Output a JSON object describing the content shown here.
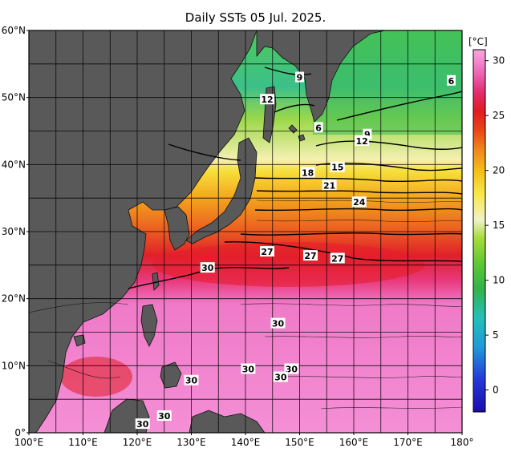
{
  "title": "Daily SSTs 05 Jul. 2025.",
  "map": {
    "lon_range": [
      100,
      180
    ],
    "lat_range": [
      0,
      60
    ],
    "lat_labels": [
      "60°N",
      "50°N",
      "40°N",
      "30°N",
      "20°N",
      "10°N",
      "0°"
    ],
    "lon_labels": [
      "100°E",
      "110°E",
      "120°E",
      "130°E",
      "140°E",
      "150°E",
      "160°E",
      "170°E",
      "180°"
    ],
    "land_color": "#595959"
  },
  "contour_labels": [
    {
      "text": "9",
      "lon": 150,
      "lat": 53
    },
    {
      "text": "6",
      "lon": 178,
      "lat": 52.5
    },
    {
      "text": "12",
      "lon": 144,
      "lat": 49.7
    },
    {
      "text": "6",
      "lon": 153.5,
      "lat": 45.5
    },
    {
      "text": "9",
      "lon": 162.5,
      "lat": 44.5
    },
    {
      "text": "12",
      "lon": 161.5,
      "lat": 43.5
    },
    {
      "text": "15",
      "lon": 157,
      "lat": 39.6
    },
    {
      "text": "18",
      "lon": 151.5,
      "lat": 38.8
    },
    {
      "text": "21",
      "lon": 155.5,
      "lat": 36.9
    },
    {
      "text": "24",
      "lon": 161,
      "lat": 34.4
    },
    {
      "text": "27",
      "lon": 144,
      "lat": 27
    },
    {
      "text": "27",
      "lon": 152,
      "lat": 26.4
    },
    {
      "text": "27",
      "lon": 157,
      "lat": 26
    },
    {
      "text": "30",
      "lon": 133,
      "lat": 24.6
    },
    {
      "text": "30",
      "lon": 146,
      "lat": 16.3
    },
    {
      "text": "30",
      "lon": 140.5,
      "lat": 9.5
    },
    {
      "text": "30",
      "lon": 148.5,
      "lat": 9.5
    },
    {
      "text": "30",
      "lon": 146.5,
      "lat": 8.3
    },
    {
      "text": "30",
      "lon": 130,
      "lat": 7.8
    },
    {
      "text": "30",
      "lon": 125,
      "lat": 2.5
    },
    {
      "text": "30",
      "lon": 121,
      "lat": 1.3
    }
  ],
  "colorbar": {
    "unit": "[°C]",
    "range": [
      -2,
      31
    ],
    "ticks": [
      "30",
      "25",
      "20",
      "15",
      "10",
      "5",
      "0"
    ],
    "colors": [
      "#1a0dab",
      "#2438d8",
      "#1f9bd8",
      "#24c0b8",
      "#33b24a",
      "#5fc833",
      "#a6dc3a",
      "#f2f2c8",
      "#f7e84a",
      "#f5c21c",
      "#f08a1a",
      "#e84418",
      "#e01a22",
      "#e02c6a",
      "#ec5fb0",
      "#f48ad0",
      "#f8a6df"
    ]
  }
}
